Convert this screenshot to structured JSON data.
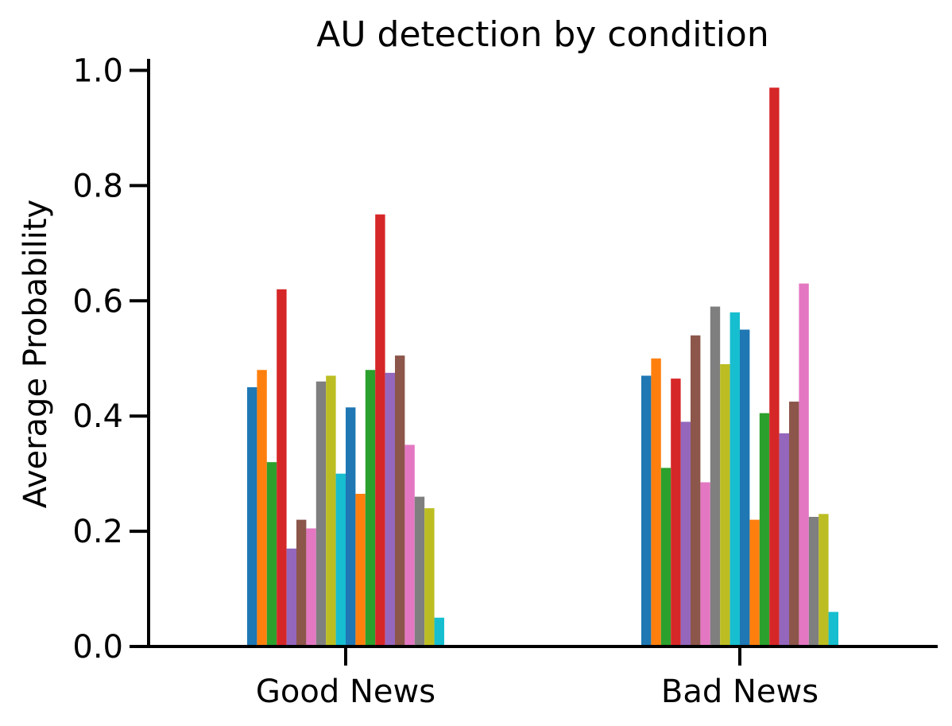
{
  "chart_data": {
    "type": "bar",
    "title": "AU detection by condition",
    "xlabel": "",
    "ylabel": "Average Probability",
    "categories": [
      "Good News",
      "Bad News"
    ],
    "ylim": [
      0,
      1.02
    ],
    "yticks": [
      "0.0",
      "0.2",
      "0.4",
      "0.6",
      "0.8",
      "1.0"
    ],
    "grid": false,
    "legend": "none",
    "colors": [
      "#1f77b4",
      "#ff7f0e",
      "#2ca02c",
      "#d62728",
      "#9467bd",
      "#8c564b",
      "#e377c2",
      "#7f7f7f",
      "#bcbd22",
      "#17becf"
    ],
    "series": [
      {
        "values": [
          0.45,
          0.47
        ]
      },
      {
        "values": [
          0.48,
          0.5
        ]
      },
      {
        "values": [
          0.32,
          0.31
        ]
      },
      {
        "values": [
          0.62,
          0.465
        ]
      },
      {
        "values": [
          0.17,
          0.39
        ]
      },
      {
        "values": [
          0.22,
          0.54
        ]
      },
      {
        "values": [
          0.205,
          0.285
        ]
      },
      {
        "values": [
          0.46,
          0.59
        ]
      },
      {
        "values": [
          0.47,
          0.49
        ]
      },
      {
        "values": [
          0.3,
          0.58
        ]
      },
      {
        "values": [
          0.415,
          0.55
        ]
      },
      {
        "values": [
          0.265,
          0.22
        ]
      },
      {
        "values": [
          0.48,
          0.405
        ]
      },
      {
        "values": [
          0.75,
          0.97
        ]
      },
      {
        "values": [
          0.475,
          0.37
        ]
      },
      {
        "values": [
          0.505,
          0.425
        ]
      },
      {
        "values": [
          0.35,
          0.63
        ]
      },
      {
        "values": [
          0.26,
          0.225
        ]
      },
      {
        "values": [
          0.24,
          0.23
        ]
      },
      {
        "values": [
          0.05,
          0.06
        ]
      }
    ]
  }
}
